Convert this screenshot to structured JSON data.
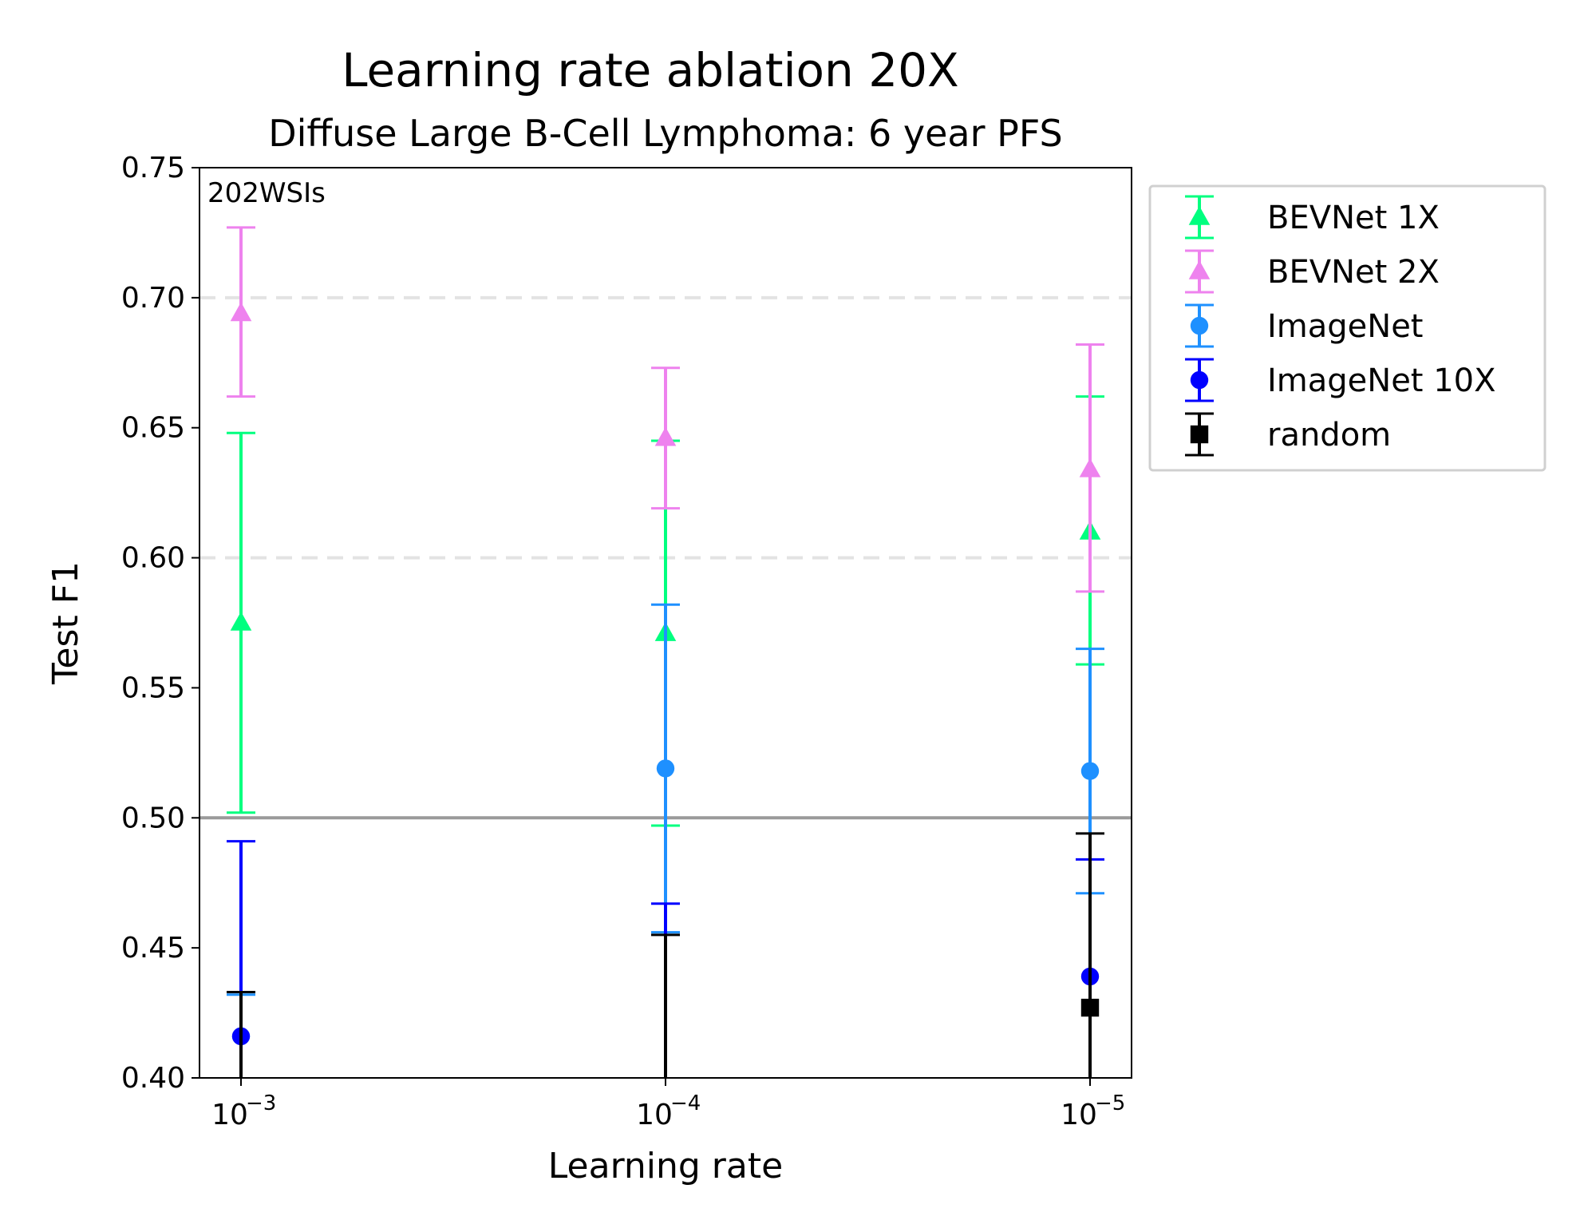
{
  "chart_data": {
    "type": "scatter",
    "title": "Learning rate ablation 20X",
    "subtitle": "Diffuse Large B-Cell Lymphoma: 6 year PFS",
    "xlabel": "Learning rate",
    "ylabel": "Test F1",
    "annotation": "202WSIs",
    "x_ticks": [
      {
        "value": 0.001,
        "base": "10",
        "exp": "−3"
      },
      {
        "value": 0.0001,
        "base": "10",
        "exp": "−4"
      },
      {
        "value": 1e-05,
        "base": "10",
        "exp": "−5"
      }
    ],
    "x_scale": "log",
    "x_reversed": true,
    "ylim": [
      0.4,
      0.75
    ],
    "y_ticks": [
      "0.40",
      "0.45",
      "0.50",
      "0.55",
      "0.60",
      "0.65",
      "0.70",
      "0.75"
    ],
    "grid": "dashed horizontal lines at 0.60 and 0.70",
    "reference_line": 0.5,
    "legend_position": "outside upper right",
    "series": [
      {
        "name": "BEVNet 1X",
        "color": "#00ff7f",
        "marker": "triangle",
        "points": [
          {
            "x": 0.001,
            "y": 0.575,
            "lo": 0.502,
            "hi": 0.648
          },
          {
            "x": 0.0001,
            "y": 0.571,
            "lo": 0.497,
            "hi": 0.645
          },
          {
            "x": 1e-05,
            "y": 0.61,
            "lo": 0.559,
            "hi": 0.662
          }
        ]
      },
      {
        "name": "BEVNet 2X",
        "color": "#ee82ee",
        "marker": "triangle",
        "points": [
          {
            "x": 0.001,
            "y": 0.694,
            "lo": 0.662,
            "hi": 0.727
          },
          {
            "x": 0.0001,
            "y": 0.646,
            "lo": 0.619,
            "hi": 0.673
          },
          {
            "x": 1e-05,
            "y": 0.634,
            "lo": 0.587,
            "hi": 0.682
          }
        ]
      },
      {
        "name": "ImageNet",
        "color": "#1e90ff",
        "marker": "circle",
        "points": [
          {
            "x": 0.001,
            "y": 0.416,
            "lo": 0.4,
            "hi": 0.432
          },
          {
            "x": 0.0001,
            "y": 0.519,
            "lo": 0.456,
            "hi": 0.582
          },
          {
            "x": 1e-05,
            "y": 0.518,
            "lo": 0.471,
            "hi": 0.565
          }
        ]
      },
      {
        "name": "ImageNet 10X",
        "color": "#0000ff",
        "marker": "circle",
        "points": [
          {
            "x": 0.001,
            "y": 0.416,
            "lo": 0.4,
            "hi": 0.491
          },
          {
            "x": 0.0001,
            "y": 0.4,
            "lo": 0.4,
            "hi": 0.467
          },
          {
            "x": 1e-05,
            "y": 0.439,
            "lo": 0.4,
            "hi": 0.484
          }
        ]
      },
      {
        "name": "random",
        "color": "#000000",
        "marker": "square",
        "points": [
          {
            "x": 0.001,
            "y": 0.4,
            "lo": 0.4,
            "hi": 0.433
          },
          {
            "x": 0.0001,
            "y": 0.4,
            "lo": 0.4,
            "hi": 0.455
          },
          {
            "x": 1e-05,
            "y": 0.427,
            "lo": 0.4,
            "hi": 0.494
          }
        ]
      }
    ]
  }
}
